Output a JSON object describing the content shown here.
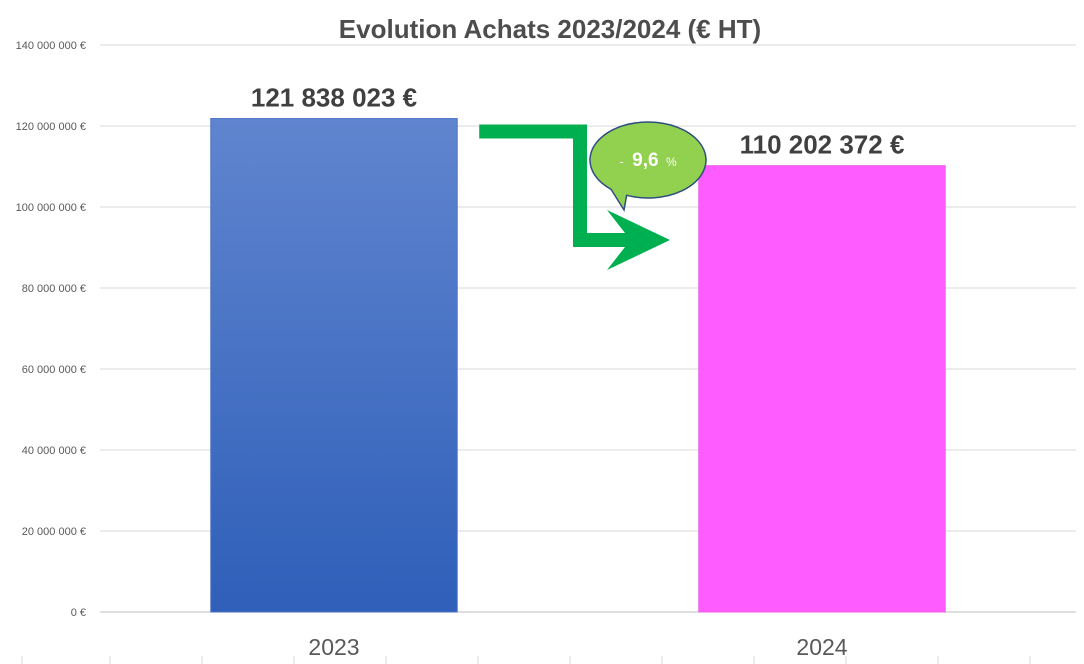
{
  "chart_data": {
    "type": "bar",
    "title": "Evolution Achats 2023/2024 (€ HT)",
    "categories": [
      "2023",
      "2024"
    ],
    "values": [
      121838023,
      110202372
    ],
    "value_labels": [
      "121 838 023 €",
      "110 202 372 €"
    ],
    "bar_colors": [
      "#4472c4",
      "#ff5cff"
    ],
    "ylim": [
      0,
      140000000
    ],
    "yticks": [
      0,
      20000000,
      40000000,
      60000000,
      80000000,
      100000000,
      120000000,
      140000000
    ],
    "ytick_labels": [
      "0 €",
      "20 000 000 €",
      "40 000 000 €",
      "60 000 000 €",
      "80 000 000 €",
      "100 000 000 €",
      "120 000 000 €",
      "140 000 000 €"
    ],
    "xlabel": "",
    "ylabel": "",
    "grid": true,
    "annotation": {
      "prefix": "-",
      "value": "9,6",
      "suffix": "%",
      "bubble_color": "#92d050",
      "arrow_color": "#00b050"
    }
  }
}
